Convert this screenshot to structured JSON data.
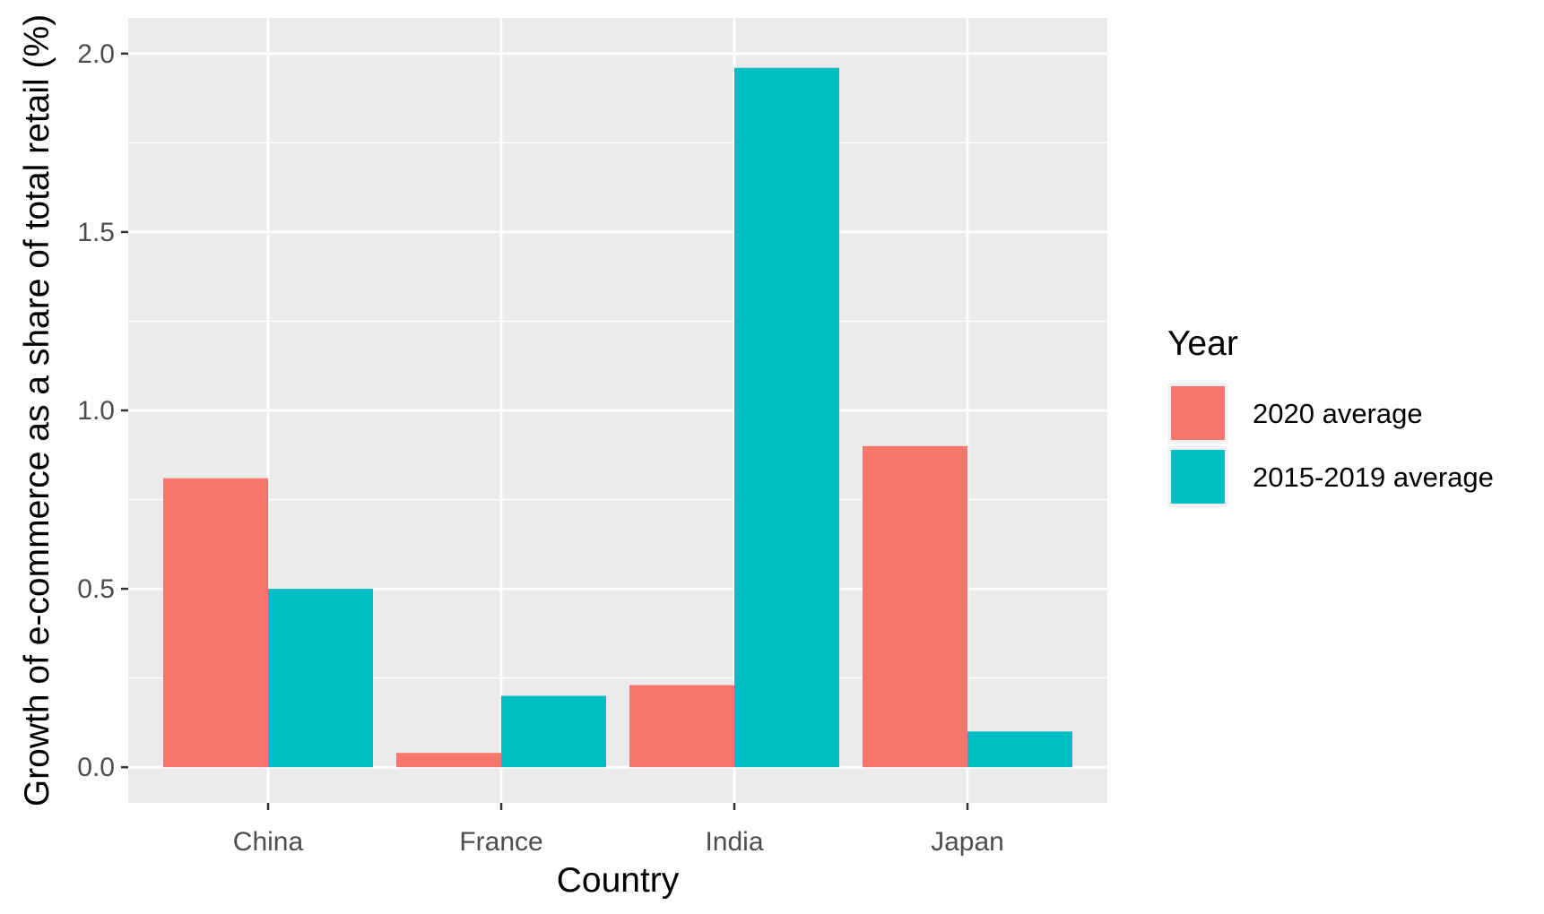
{
  "chart_data": {
    "type": "bar",
    "title": "",
    "xlabel": "Country",
    "ylabel": "Growth of e-commerce as a share of total retail (%)",
    "categories": [
      "China",
      "France",
      "India",
      "Japan"
    ],
    "series": [
      {
        "name": "2020 average",
        "values": [
          0.81,
          0.04,
          0.23,
          0.9
        ],
        "color": "#F8766D"
      },
      {
        "name": "2015-2019 average",
        "values": [
          0.5,
          0.2,
          1.96,
          0.1
        ],
        "color": "#00BFC4"
      }
    ],
    "ylim": [
      -0.1,
      2.1
    ],
    "yticks": [
      0.0,
      0.5,
      1.0,
      1.5,
      2.0
    ],
    "ytick_labels": [
      "0.0",
      "0.5",
      "1.0",
      "1.5",
      "2.0"
    ],
    "grid": true,
    "panel_background": "#EBEBEB",
    "grid_color": "#FFFFFF",
    "legend": {
      "title": "Year",
      "placement": "right"
    }
  }
}
